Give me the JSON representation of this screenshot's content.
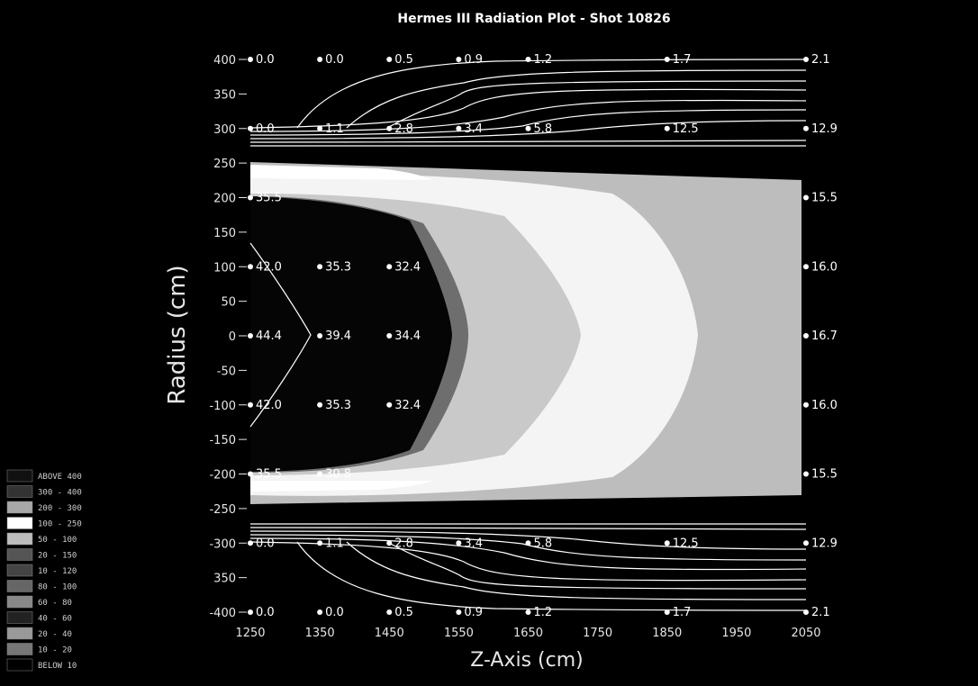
{
  "chart_data": {
    "type": "heatmap",
    "title": "Hermes III Radiation Plot - Shot 10826",
    "xlabel": "Z-Axis (cm)",
    "ylabel": "Radius (cm)",
    "xlim": [
      1250,
      2050
    ],
    "ylim": [
      -400,
      400
    ],
    "x_ticks": [
      "1250",
      "1350",
      "1450",
      "1550",
      "1650",
      "1750",
      "1850",
      "1950",
      "2050"
    ],
    "y_ticks": [
      "400",
      "350",
      "300",
      "250",
      "200",
      "150",
      "100",
      "50",
      "0",
      "-50",
      "-100",
      "-150",
      "-200",
      "-250",
      "-300",
      "350",
      "-400"
    ],
    "data_points": [
      {
        "x": 1250,
        "y": 400,
        "label": "0.0"
      },
      {
        "x": 1350,
        "y": 400,
        "label": "0.0"
      },
      {
        "x": 1450,
        "y": 400,
        "label": "0.5"
      },
      {
        "x": 1550,
        "y": 400,
        "label": "0.9"
      },
      {
        "x": 1650,
        "y": 400,
        "label": "1.2"
      },
      {
        "x": 1850,
        "y": 400,
        "label": "1.7"
      },
      {
        "x": 2050,
        "y": 400,
        "label": "2.1"
      },
      {
        "x": 1250,
        "y": 300,
        "label": "0.0"
      },
      {
        "x": 1350,
        "y": 300,
        "label": "1.1"
      },
      {
        "x": 1450,
        "y": 300,
        "label": "2.8"
      },
      {
        "x": 1550,
        "y": 300,
        "label": "3.4"
      },
      {
        "x": 1650,
        "y": 300,
        "label": "5.8"
      },
      {
        "x": 1850,
        "y": 300,
        "label": "12.5"
      },
      {
        "x": 2050,
        "y": 300,
        "label": "12.9"
      },
      {
        "x": 1250,
        "y": 200,
        "label": "35.5"
      },
      {
        "x": 2050,
        "y": 200,
        "label": "15.5"
      },
      {
        "x": 1250,
        "y": 100,
        "label": "42.0"
      },
      {
        "x": 1350,
        "y": 100,
        "label": "35.3"
      },
      {
        "x": 1450,
        "y": 100,
        "label": "32.4"
      },
      {
        "x": 2050,
        "y": 100,
        "label": "16.0"
      },
      {
        "x": 1250,
        "y": 0,
        "label": "44.4"
      },
      {
        "x": 1350,
        "y": 0,
        "label": "39.4"
      },
      {
        "x": 1450,
        "y": 0,
        "label": "34.4"
      },
      {
        "x": 2050,
        "y": 0,
        "label": "16.7"
      },
      {
        "x": 1250,
        "y": -100,
        "label": "42.0"
      },
      {
        "x": 1350,
        "y": -100,
        "label": "35.3"
      },
      {
        "x": 1450,
        "y": -100,
        "label": "32.4"
      },
      {
        "x": 2050,
        "y": -100,
        "label": "16.0"
      },
      {
        "x": 1250,
        "y": -200,
        "label": "35.5"
      },
      {
        "x": 1350,
        "y": -200,
        "label": "30.8"
      },
      {
        "x": 2050,
        "y": -200,
        "label": "15.5"
      },
      {
        "x": 1250,
        "y": -300,
        "label": "0.0"
      },
      {
        "x": 1350,
        "y": -300,
        "label": "1.1"
      },
      {
        "x": 1450,
        "y": -300,
        "label": "2.8"
      },
      {
        "x": 1550,
        "y": -300,
        "label": "3.4"
      },
      {
        "x": 1650,
        "y": -300,
        "label": "5.8"
      },
      {
        "x": 1850,
        "y": -300,
        "label": "12.5"
      },
      {
        "x": 2050,
        "y": -300,
        "label": "12.9"
      },
      {
        "x": 1250,
        "y": -400,
        "label": "0.0"
      },
      {
        "x": 1350,
        "y": -400,
        "label": "0.0"
      },
      {
        "x": 1450,
        "y": -400,
        "label": "0.5"
      },
      {
        "x": 1550,
        "y": -400,
        "label": "0.9"
      },
      {
        "x": 1650,
        "y": -400,
        "label": "1.2"
      },
      {
        "x": 1850,
        "y": -400,
        "label": "1.7"
      },
      {
        "x": 2050,
        "y": -400,
        "label": "2.1"
      }
    ],
    "legend": [
      {
        "label": "ABOVE  400"
      },
      {
        "label": "300 - 400"
      },
      {
        "label": "200 - 300"
      },
      {
        "label": "100 - 250"
      },
      {
        "label": "50 - 100"
      },
      {
        "label": "20 - 150"
      },
      {
        "label": "10 - 120"
      },
      {
        "label": "80 - 100"
      },
      {
        "label": "60 - 80"
      },
      {
        "label": "40 - 60"
      },
      {
        "label": "20 - 40"
      },
      {
        "label": "10 - 20"
      },
      {
        "label": "BELOW  10"
      }
    ],
    "legend_position": "bottom-left",
    "colors": {
      "background": "#000000",
      "low_band": "#1a1a1a",
      "mid_band": "#b4b4b4",
      "peak_band": "#ffffff",
      "contour": "#ffffff"
    }
  }
}
